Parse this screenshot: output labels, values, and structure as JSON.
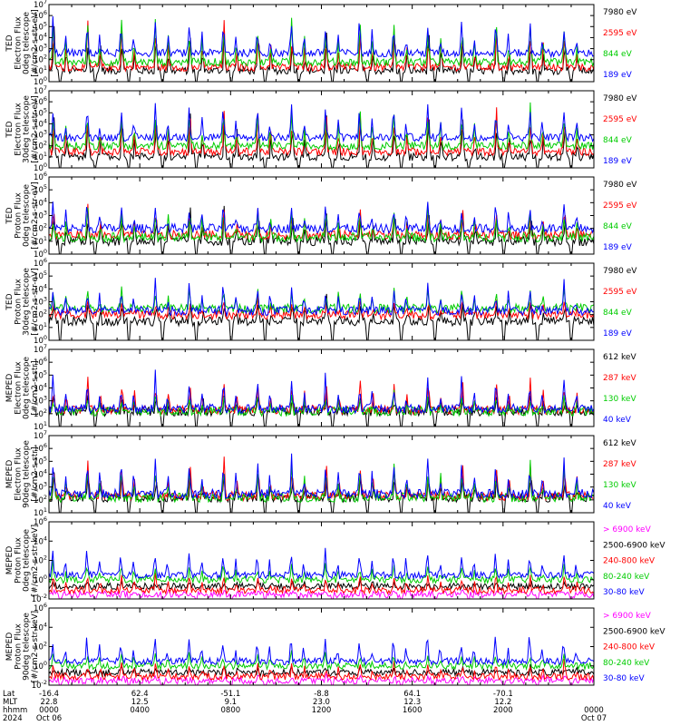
{
  "chart_data": [
    {
      "type": "line",
      "ylabel": [
        "TED",
        "Electron Flux",
        "0deg telescope",
        "[#/cm2-s-str-eV]"
      ],
      "ylim": [
        1,
        10000000
      ],
      "yscale": "log",
      "ytick_labels": [
        "10^0",
        "10^1",
        "10^2",
        "10^3",
        "10^4",
        "10^5",
        "10^6",
        "10^7"
      ],
      "series": [
        {
          "name": "7980 eV",
          "color": "#000000",
          "base": 10,
          "peak": 300000
        },
        {
          "name": "2595 eV",
          "color": "#ff0000",
          "base": 20,
          "peak": 1000000
        },
        {
          "name": "844 eV",
          "color": "#00cc00",
          "base": 60,
          "peak": 3000000
        },
        {
          "name": "189 eV",
          "color": "#0000ff",
          "base": 400,
          "peak": 3000000
        }
      ]
    },
    {
      "type": "line",
      "ylabel": [
        "TED",
        "Electron Flux",
        "30deg telescope",
        "[#/cm2-s-str-eV]"
      ],
      "ylim": [
        1,
        10000000
      ],
      "yscale": "log",
      "ytick_labels": [
        "10^0",
        "10^1",
        "10^2",
        "10^3",
        "10^4",
        "10^5",
        "10^6",
        "10^7"
      ],
      "series": [
        {
          "name": "7980 eV",
          "color": "#000000",
          "base": 10,
          "peak": 300000
        },
        {
          "name": "2595 eV",
          "color": "#ff0000",
          "base": 30,
          "peak": 1000000
        },
        {
          "name": "844 eV",
          "color": "#00cc00",
          "base": 100,
          "peak": 3000000
        },
        {
          "name": "189 eV",
          "color": "#0000ff",
          "base": 600,
          "peak": 3000000
        }
      ]
    },
    {
      "type": "line",
      "ylabel": [
        "TED",
        "Proton Flux",
        "0deg telescope",
        "[#/cm2-s-str-eV]"
      ],
      "ylim": [
        1,
        1000000
      ],
      "yscale": "log",
      "ytick_labels": [
        "10^0",
        "10^1",
        "10^2",
        "10^3",
        "10^4",
        "10^5",
        "10^6"
      ],
      "series": [
        {
          "name": "7980 eV",
          "color": "#000000",
          "base": 10,
          "peak": 10000
        },
        {
          "name": "2595 eV",
          "color": "#ff0000",
          "base": 30,
          "peak": 10000
        },
        {
          "name": "844 eV",
          "color": "#00cc00",
          "base": 20,
          "peak": 30000
        },
        {
          "name": "189 eV",
          "color": "#0000ff",
          "base": 100,
          "peak": 30000
        }
      ]
    },
    {
      "type": "line",
      "ylabel": [
        "TED",
        "Proton Flux",
        "30deg telescope",
        "[#/cm2-s-str-eV]"
      ],
      "ylim": [
        1,
        1000000
      ],
      "yscale": "log",
      "ytick_labels": [
        "10^0",
        "10^1",
        "10^2",
        "10^3",
        "10^4",
        "10^5",
        "10^6"
      ],
      "series": [
        {
          "name": "7980 eV",
          "color": "#000000",
          "base": 30,
          "peak": 3000
        },
        {
          "name": "2595 eV",
          "color": "#ff0000",
          "base": 100,
          "peak": 3000
        },
        {
          "name": "844 eV",
          "color": "#00cc00",
          "base": 300,
          "peak": 30000
        },
        {
          "name": "189 eV",
          "color": "#0000ff",
          "base": 200,
          "peak": 100000
        }
      ]
    },
    {
      "type": "line",
      "ylabel": [
        "MEPED",
        "Electron Flux",
        "0deg telescope",
        "[#/cm2-s-str]"
      ],
      "ylim": [
        10,
        10000000
      ],
      "yscale": "log",
      "ytick_labels": [
        "10^1",
        "10^2",
        "10^3",
        "10^4",
        "10^5",
        "10^6",
        "10^7"
      ],
      "series": [
        {
          "name": "612 keV",
          "color": "#000000",
          "base": 150,
          "peak": 10000
        },
        {
          "name": "287 keV",
          "color": "#ff0000",
          "base": 200,
          "peak": 200000
        },
        {
          "name": "130 keV",
          "color": "#00cc00",
          "base": 150,
          "peak": 10000
        },
        {
          "name": "40 keV",
          "color": "#0000ff",
          "base": 250,
          "peak": 300000
        }
      ]
    },
    {
      "type": "line",
      "ylabel": [
        "MEPED",
        "Electron Flux",
        "90deg telescope",
        "[#/cm2-s-str]"
      ],
      "ylim": [
        10,
        10000000
      ],
      "yscale": "log",
      "ytick_labels": [
        "10^1",
        "10^2",
        "10^3",
        "10^4",
        "10^5",
        "10^6",
        "10^7"
      ],
      "series": [
        {
          "name": "612 keV",
          "color": "#000000",
          "base": 150,
          "peak": 30000
        },
        {
          "name": "287 keV",
          "color": "#ff0000",
          "base": 200,
          "peak": 300000
        },
        {
          "name": "130 keV",
          "color": "#00cc00",
          "base": 150,
          "peak": 300000
        },
        {
          "name": "40 keV",
          "color": "#0000ff",
          "base": 300,
          "peak": 1000000
        }
      ]
    },
    {
      "type": "line",
      "ylabel": [
        "MEPED",
        "Proton Flux",
        "0deg telescope",
        "[#/cm2-s-str-keV]"
      ],
      "ylim": [
        0.01,
        1000000
      ],
      "yscale": "log",
      "ytick_labels": [
        "10^-2",
        "10^0",
        "10^2",
        "10^4",
        "10^6"
      ],
      "series": [
        {
          "name": "> 6900 keV",
          "color": "#ff00ff",
          "base": 0.03,
          "peak": 0.1
        },
        {
          "name": "2500-6900 keV",
          "color": "#000000",
          "base": 0.2,
          "peak": 1
        },
        {
          "name": "240-800 keV",
          "color": "#ff0000",
          "base": 0.08,
          "peak": 10
        },
        {
          "name": "80-240 keV",
          "color": "#00cc00",
          "base": 1,
          "peak": 100
        },
        {
          "name": "30-80 keV",
          "color": "#0000ff",
          "base": 3,
          "peak": 10000
        }
      ]
    },
    {
      "type": "line",
      "ylabel": [
        "MEPED",
        "Proton Flux",
        "90deg telescope",
        "[#/cm2-s-str-keV]"
      ],
      "ylim": [
        0.01,
        1000000
      ],
      "yscale": "log",
      "ytick_labels": [
        "10^-2",
        "10^0",
        "10^2",
        "10^4",
        "10^6"
      ],
      "series": [
        {
          "name": "> 6900 keV",
          "color": "#ff00ff",
          "base": 0.03,
          "peak": 0.1
        },
        {
          "name": "2500-6900 keV",
          "color": "#000000",
          "base": 0.2,
          "peak": 1
        },
        {
          "name": "240-800 keV",
          "color": "#ff0000",
          "base": 0.08,
          "peak": 10
        },
        {
          "name": "80-240 keV",
          "color": "#00cc00",
          "base": 1,
          "peak": 100
        },
        {
          "name": "30-80 keV",
          "color": "#0000ff",
          "base": 3,
          "peak": 10000
        }
      ]
    }
  ],
  "x_axis": {
    "range_hours": [
      0,
      24
    ],
    "row_labels": [
      "Lat",
      "MLT",
      "hhmm",
      "2024"
    ],
    "ticks": [
      {
        "hour": 0,
        "lat": "-16.4",
        "mlt": "22.8",
        "hhmm": "0000",
        "date": "Oct 06"
      },
      {
        "hour": 4,
        "lat": "62.4",
        "mlt": "12.5",
        "hhmm": "0400",
        "date": ""
      },
      {
        "hour": 8,
        "lat": "-51.1",
        "mlt": "9.1",
        "hhmm": "0800",
        "date": ""
      },
      {
        "hour": 12,
        "lat": "-8.8",
        "mlt": "23.0",
        "hhmm": "1200",
        "date": ""
      },
      {
        "hour": 16,
        "lat": "64.1",
        "mlt": "12.3",
        "hhmm": "1600",
        "date": ""
      },
      {
        "hour": 20,
        "lat": "-70.1",
        "mlt": "12.2",
        "hhmm": "2000",
        "date": ""
      },
      {
        "hour": 24,
        "lat": "",
        "mlt": "",
        "hhmm": "0000",
        "date": "Oct 07"
      }
    ]
  },
  "orbit_count": 16
}
